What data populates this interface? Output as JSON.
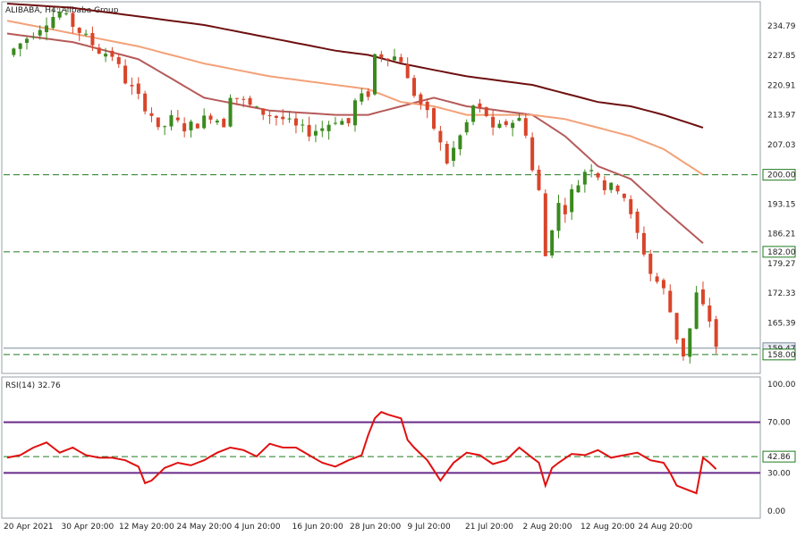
{
  "chart_data": [
    {
      "type": "candlestick",
      "title": "ALIBABA, H4:  Alibaba Group",
      "ylim": [
        154.0,
        240.0
      ],
      "y_ticks": [
        "234.79",
        "227.85",
        "220.91",
        "213.97",
        "207.03",
        "200.00",
        "193.15",
        "186.21",
        "182.00",
        "179.27",
        "172.33",
        "165.39",
        "159.47",
        "158.00"
      ],
      "x_ticks": [
        "20 Apr 2021",
        "30 Apr 20:00",
        "12 May 20:00",
        "24 May 20:00",
        "4 Jun 20:00",
        "16 Jun 20:00",
        "28 Jun 20:00",
        "9 Jul 20:00",
        "21 Jul 20:00",
        "2 Aug 20:00",
        "12 Aug 20:00",
        "24 Aug 20:00"
      ],
      "current_price": 159.47,
      "levels": [
        200.0,
        182.0,
        158.0
      ],
      "colors": {
        "bull": "#3a8a1e",
        "bear": "#d9452a",
        "level": "#1e7a1e",
        "ma_fast": "#b65a5a",
        "ma_mid": "#f3a178",
        "ma_slow": "#6e1010",
        "price_line": "#7a8a9a"
      },
      "price_path": [
        [
          0,
          228
        ],
        [
          3,
          232
        ],
        [
          6,
          236
        ],
        [
          8,
          238
        ],
        [
          10,
          235
        ],
        [
          12,
          232
        ],
        [
          14,
          229
        ],
        [
          16,
          228
        ],
        [
          18,
          222
        ],
        [
          20,
          218
        ],
        [
          22,
          214
        ],
        [
          23,
          210
        ],
        [
          25,
          213
        ],
        [
          27,
          211
        ],
        [
          29,
          212
        ],
        [
          31,
          214
        ],
        [
          33,
          212
        ],
        [
          34,
          219
        ],
        [
          36,
          217
        ],
        [
          38,
          215
        ],
        [
          40,
          214
        ],
        [
          42,
          213
        ],
        [
          44,
          211
        ],
        [
          46,
          210
        ],
        [
          48,
          211
        ],
        [
          50,
          213
        ],
        [
          52,
          212
        ],
        [
          53,
          217
        ],
        [
          55,
          219
        ],
        [
          56,
          228
        ],
        [
          58,
          228
        ],
        [
          60,
          227
        ],
        [
          61,
          222
        ],
        [
          62,
          219
        ],
        [
          64,
          214
        ],
        [
          65,
          211
        ],
        [
          67,
          203
        ],
        [
          68,
          206
        ],
        [
          70,
          212
        ],
        [
          71,
          216
        ],
        [
          73,
          214
        ],
        [
          74,
          210
        ],
        [
          76,
          212
        ],
        [
          78,
          213
        ],
        [
          79,
          210
        ],
        [
          80,
          201
        ],
        [
          81,
          196
        ],
        [
          82,
          181
        ],
        [
          83,
          188
        ],
        [
          84,
          193
        ],
        [
          85,
          192
        ],
        [
          86,
          196
        ],
        [
          87,
          198
        ],
        [
          88,
          201
        ],
        [
          89,
          202
        ],
        [
          90,
          200
        ],
        [
          91,
          197
        ],
        [
          92,
          197
        ],
        [
          93,
          197
        ],
        [
          94,
          195
        ],
        [
          95,
          190
        ],
        [
          96,
          186
        ],
        [
          97,
          182
        ],
        [
          98,
          177
        ],
        [
          99,
          175
        ],
        [
          100,
          173
        ],
        [
          101,
          168
        ],
        [
          102,
          162
        ],
        [
          103,
          158
        ],
        [
          104,
          164
        ],
        [
          105,
          172
        ],
        [
          106,
          169
        ],
        [
          107,
          166
        ],
        [
          108,
          160
        ]
      ],
      "moving_averages": [
        {
          "key": "ma_fast",
          "points": [
            [
              0,
              233
            ],
            [
              10,
              231
            ],
            [
              20,
              227
            ],
            [
              30,
              218
            ],
            [
              40,
              215
            ],
            [
              50,
              214
            ],
            [
              55,
              214
            ],
            [
              60,
              216
            ],
            [
              65,
              218
            ],
            [
              70,
              216
            ],
            [
              75,
              215
            ],
            [
              80,
              214
            ],
            [
              85,
              209
            ],
            [
              90,
              202
            ],
            [
              95,
              199
            ],
            [
              100,
              192
            ],
            [
              106,
              184
            ]
          ]
        },
        {
          "key": "ma_mid",
          "points": [
            [
              0,
              236
            ],
            [
              10,
              233
            ],
            [
              20,
              230
            ],
            [
              30,
              226
            ],
            [
              40,
              223
            ],
            [
              50,
              221
            ],
            [
              55,
              220
            ],
            [
              60,
              217
            ],
            [
              65,
              216
            ],
            [
              70,
              214
            ],
            [
              80,
              214
            ],
            [
              85,
              213
            ],
            [
              90,
              211
            ],
            [
              95,
              209
            ],
            [
              100,
              206
            ],
            [
              106,
              200
            ]
          ]
        },
        {
          "key": "ma_slow",
          "points": [
            [
              0,
              240
            ],
            [
              10,
              239
            ],
            [
              20,
              237
            ],
            [
              30,
              235
            ],
            [
              40,
              232
            ],
            [
              50,
              229
            ],
            [
              55,
              228
            ],
            [
              60,
              226
            ],
            [
              70,
              223
            ],
            [
              80,
              221
            ],
            [
              85,
              219
            ],
            [
              90,
              217
            ],
            [
              95,
              216
            ],
            [
              100,
              214
            ],
            [
              106,
              211
            ]
          ]
        }
      ]
    },
    {
      "type": "line",
      "title": "RSI(14) 32.76",
      "ylim": [
        0,
        100
      ],
      "y_ticks": [
        "100.00",
        "70.00",
        "42.86",
        "30.00",
        "0.00"
      ],
      "levels": [
        70,
        42.86,
        30
      ],
      "colors": {
        "line": "#e01010",
        "band": "#6a2a8a",
        "mid": "#1e7a1e"
      },
      "values_path": [
        [
          0,
          42
        ],
        [
          2,
          44
        ],
        [
          4,
          50
        ],
        [
          6,
          54
        ],
        [
          8,
          46
        ],
        [
          10,
          50
        ],
        [
          12,
          44
        ],
        [
          14,
          42
        ],
        [
          16,
          42
        ],
        [
          18,
          40
        ],
        [
          20,
          35
        ],
        [
          21,
          22
        ],
        [
          22,
          24
        ],
        [
          24,
          34
        ],
        [
          26,
          38
        ],
        [
          28,
          36
        ],
        [
          30,
          40
        ],
        [
          32,
          46
        ],
        [
          34,
          50
        ],
        [
          36,
          48
        ],
        [
          38,
          43
        ],
        [
          40,
          53
        ],
        [
          42,
          50
        ],
        [
          44,
          50
        ],
        [
          46,
          44
        ],
        [
          48,
          38
        ],
        [
          50,
          35
        ],
        [
          52,
          40
        ],
        [
          54,
          44
        ],
        [
          55,
          60
        ],
        [
          56,
          73
        ],
        [
          57,
          78
        ],
        [
          58,
          76
        ],
        [
          60,
          73
        ],
        [
          61,
          56
        ],
        [
          62,
          50
        ],
        [
          64,
          40
        ],
        [
          65,
          32
        ],
        [
          66,
          24
        ],
        [
          68,
          38
        ],
        [
          70,
          46
        ],
        [
          72,
          44
        ],
        [
          74,
          37
        ],
        [
          76,
          40
        ],
        [
          78,
          50
        ],
        [
          80,
          42
        ],
        [
          81,
          38
        ],
        [
          82,
          20
        ],
        [
          83,
          34
        ],
        [
          84,
          38
        ],
        [
          86,
          45
        ],
        [
          88,
          44
        ],
        [
          90,
          48
        ],
        [
          92,
          42
        ],
        [
          94,
          44
        ],
        [
          96,
          46
        ],
        [
          98,
          40
        ],
        [
          100,
          38
        ],
        [
          101,
          30
        ],
        [
          102,
          20
        ],
        [
          104,
          16
        ],
        [
          105,
          14
        ],
        [
          106,
          42
        ],
        [
          107,
          38
        ],
        [
          108,
          33
        ]
      ]
    }
  ]
}
